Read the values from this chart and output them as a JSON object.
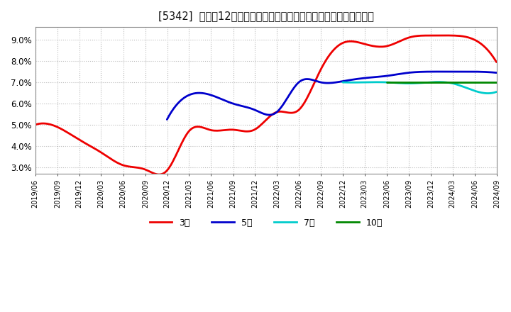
{
  "title": "[5342]  売上高12か月移動合計の対前年同期増減率の標準偏差の推移",
  "ylim": [
    0.027,
    0.096
  ],
  "yticks": [
    0.03,
    0.04,
    0.05,
    0.06,
    0.07,
    0.08,
    0.09
  ],
  "ytick_labels": [
    "3.0%",
    "4.0%",
    "5.0%",
    "6.0%",
    "7.0%",
    "8.0%",
    "9.0%"
  ],
  "background_color": "#ffffff",
  "plot_bg_color": "#ffffff",
  "grid_color": "#bbbbbb",
  "series": {
    "3yr": {
      "color": "#ee0000",
      "label": "3年",
      "x_months": [
        0,
        3,
        6,
        9,
        12,
        15,
        18,
        21,
        24,
        27,
        30,
        33,
        36,
        39,
        42,
        45,
        48,
        51,
        54,
        57,
        60,
        63
      ],
      "y": [
        0.05,
        0.049,
        0.043,
        0.037,
        0.031,
        0.029,
        0.0285,
        0.047,
        0.0475,
        0.0477,
        0.0478,
        0.056,
        0.057,
        0.076,
        0.0885,
        0.088,
        0.087,
        0.091,
        0.092,
        0.092,
        0.09,
        0.0795
      ]
    },
    "5yr": {
      "color": "#0000cc",
      "label": "5年",
      "x_months": [
        18,
        21,
        24,
        27,
        30,
        33,
        36,
        39,
        42,
        45,
        48,
        51,
        54,
        57,
        60,
        63
      ],
      "y": [
        0.0525,
        0.064,
        0.064,
        0.06,
        0.057,
        0.056,
        0.07,
        0.07,
        0.0705,
        0.072,
        0.073,
        0.0745,
        0.075,
        0.075,
        0.075,
        0.0745
      ]
    },
    "7yr": {
      "color": "#00cccc",
      "label": "7年",
      "x_months": [
        42,
        45,
        48,
        51,
        54,
        57,
        60,
        63
      ],
      "y": [
        0.07,
        0.07,
        0.07,
        0.0695,
        0.07,
        0.0695,
        0.066,
        0.0655
      ]
    },
    "10yr": {
      "color": "#008800",
      "label": "10年",
      "x_months": [
        48,
        51,
        54,
        57,
        60,
        63
      ],
      "y": [
        0.07,
        0.07,
        0.07,
        0.07,
        0.07,
        0.07
      ]
    }
  },
  "x_start": "2019/06",
  "xticklabels": [
    "2019/06",
    "2019/09",
    "2019/12",
    "2020/03",
    "2020/06",
    "2020/09",
    "2020/12",
    "2021/03",
    "2021/06",
    "2021/09",
    "2021/12",
    "2022/03",
    "2022/06",
    "2022/09",
    "2022/12",
    "2023/03",
    "2023/06",
    "2023/09",
    "2023/12",
    "2024/03",
    "2024/06",
    "2024/09"
  ],
  "legend_labels": [
    "3年",
    "5年",
    "7年",
    "10年"
  ],
  "legend_colors": [
    "#ee0000",
    "#0000cc",
    "#00cccc",
    "#008800"
  ]
}
